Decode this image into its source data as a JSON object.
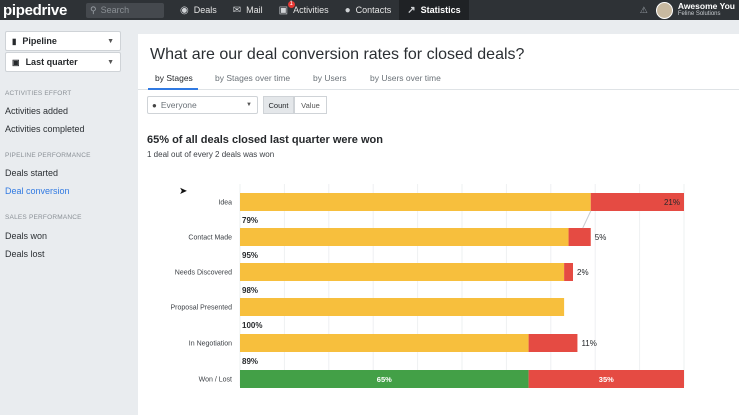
{
  "app": {
    "logo": "pipedrive"
  },
  "topnav": {
    "search_placeholder": "Search",
    "items": [
      {
        "label": "Deals",
        "icon": "dollar-icon"
      },
      {
        "label": "Mail",
        "icon": "mail-icon"
      },
      {
        "label": "Activities",
        "icon": "calendar-icon",
        "badge": "1"
      },
      {
        "label": "Contacts",
        "icon": "person-icon"
      },
      {
        "label": "Statistics",
        "icon": "trend-icon",
        "active": true
      }
    ],
    "user": {
      "name": "Awesome You",
      "org": "Feline Solutions"
    }
  },
  "sidebar": {
    "pipeline_select": "Pipeline",
    "period_select": "Last quarter",
    "sections": [
      {
        "heading": "ACTIVITIES EFFORT",
        "items": [
          "Activities added",
          "Activities completed"
        ]
      },
      {
        "heading": "PIPELINE PERFORMANCE",
        "items": [
          "Deals started",
          "Deal conversion"
        ]
      },
      {
        "heading": "SALES PERFORMANCE",
        "items": [
          "Deals won",
          "Deals lost"
        ]
      }
    ],
    "active_item": "Deal conversion"
  },
  "main": {
    "title": "What are our deal conversion rates for closed deals?",
    "tabs": [
      "by Stages",
      "by Stages over time",
      "by Users",
      "by Users over time"
    ],
    "active_tab": "by Stages",
    "filter": {
      "value": "Everyone"
    },
    "toggle": {
      "options": [
        "Count",
        "Value"
      ],
      "selected": "Count"
    },
    "headline": "65% of all deals closed last quarter were won",
    "subline": "1 deal out of every 2 deals was won"
  },
  "chart_data": {
    "type": "bar",
    "orientation": "horizontal",
    "categories": [
      "Idea",
      "Contact Made",
      "Needs Discovered",
      "Proposal Presented",
      "In Negotiation",
      "Won / Lost"
    ],
    "series": [
      {
        "values": [
          79,
          74,
          73,
          73,
          65,
          65
        ],
        "color": "#f7bf3d"
      },
      {
        "values": [
          21,
          5,
          2,
          0,
          11,
          35
        ],
        "color": "#e54b43"
      }
    ],
    "segment_labels": [
      "21%",
      "5%",
      "2%",
      "",
      "11%",
      "35%"
    ],
    "conversion_labels": [
      "79%",
      "95%",
      "98%",
      "100%",
      "89%"
    ],
    "final_bar": {
      "won_label": "65%",
      "lost_label": "35%",
      "won_color": "#43a047",
      "lost_color": "#e54b43"
    },
    "xlim": [
      0,
      100
    ],
    "grid": true
  }
}
